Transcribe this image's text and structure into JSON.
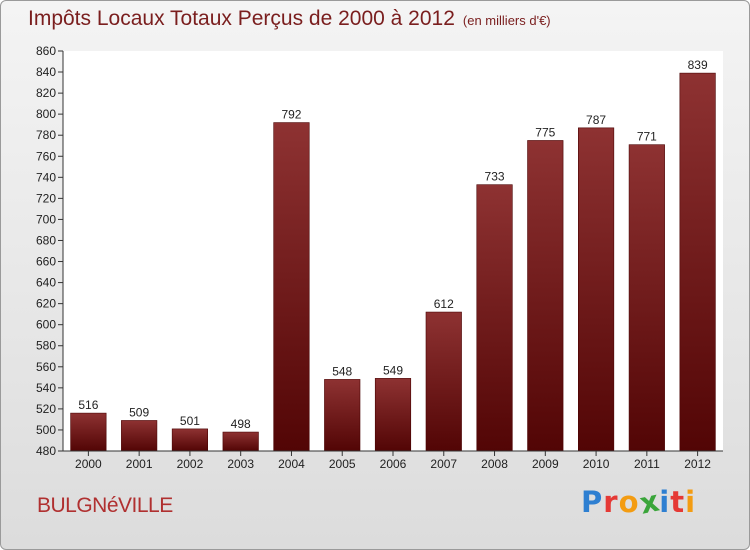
{
  "header": {
    "title": "Impôts Locaux Totaux Perçus de 2000 à 2012",
    "unit": "(en milliers d'€)"
  },
  "footer": {
    "city": "BULGNéVILLE",
    "logo_letters": [
      "P",
      "r",
      "o",
      "x",
      "i",
      "t",
      "i"
    ],
    "logo_colors": [
      "#2e7fd1",
      "#e53935",
      "#f39c12",
      "#3aa53a",
      "#2e7fd1",
      "#e53935",
      "#f39c12"
    ]
  },
  "chart_data": {
    "type": "bar",
    "title": "Impôts Locaux Totaux Perçus de 2000 à 2012",
    "xlabel": "",
    "ylabel": "",
    "categories": [
      "2000",
      "2001",
      "2002",
      "2003",
      "2004",
      "2005",
      "2006",
      "2007",
      "2008",
      "2009",
      "2010",
      "2011",
      "2012"
    ],
    "values": [
      516,
      509,
      501,
      498,
      792,
      548,
      549,
      612,
      733,
      775,
      787,
      771,
      839
    ],
    "ylim": [
      480,
      860
    ],
    "ytick_step": 20,
    "grid": false,
    "bar_color": "#6e1414"
  }
}
